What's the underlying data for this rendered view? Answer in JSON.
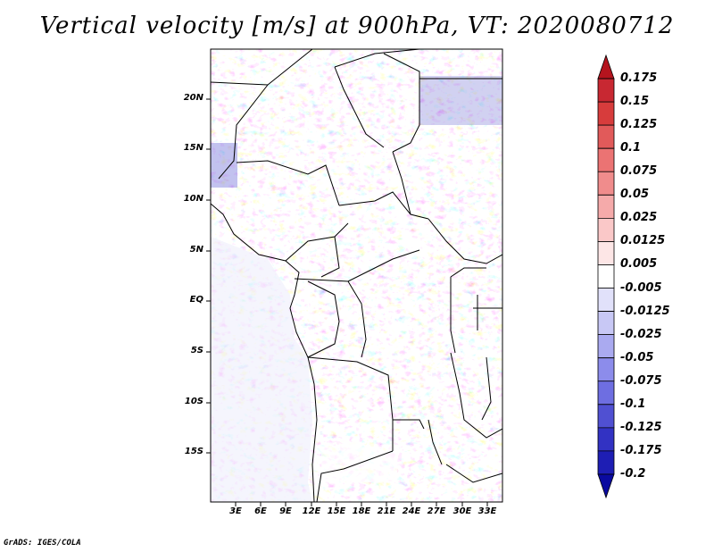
{
  "title": "Vertical velocity [m/s] at 900hPa, VT: 2020080712",
  "credit": "GrADS: IGES/COLA",
  "map": {
    "variable": "Vertical velocity",
    "units": "m/s",
    "level": "900hPa",
    "valid_time": "2020080712",
    "lat_labels": [
      "20N",
      "15N",
      "10N",
      "5N",
      "EQ",
      "5S",
      "10S",
      "15S"
    ],
    "lon_labels": [
      "3E",
      "6E",
      "9E",
      "12E",
      "15E",
      "18E",
      "21E",
      "24E",
      "27E",
      "30E",
      "33E"
    ]
  },
  "colorbar": {
    "labels": [
      "0.175",
      "0.15",
      "0.125",
      "0.1",
      "0.075",
      "0.05",
      "0.025",
      "0.0125",
      "0.005",
      "-0.005",
      "-0.0125",
      "-0.025",
      "-0.05",
      "-0.075",
      "-0.1",
      "-0.125",
      "-0.175",
      "-0.2"
    ],
    "colors": [
      "#b4141e",
      "#c82832",
      "#d73c3c",
      "#e15a5a",
      "#eb7373",
      "#f08c8c",
      "#f5aaaa",
      "#fac8c8",
      "#fde6e6",
      "#ffffff",
      "#e1e1fa",
      "#c8c8f5",
      "#aaaaf0",
      "#8c8ceb",
      "#6e6ee1",
      "#5050d2",
      "#3232c3",
      "#1e1eb4",
      "#0a0aa0"
    ]
  }
}
